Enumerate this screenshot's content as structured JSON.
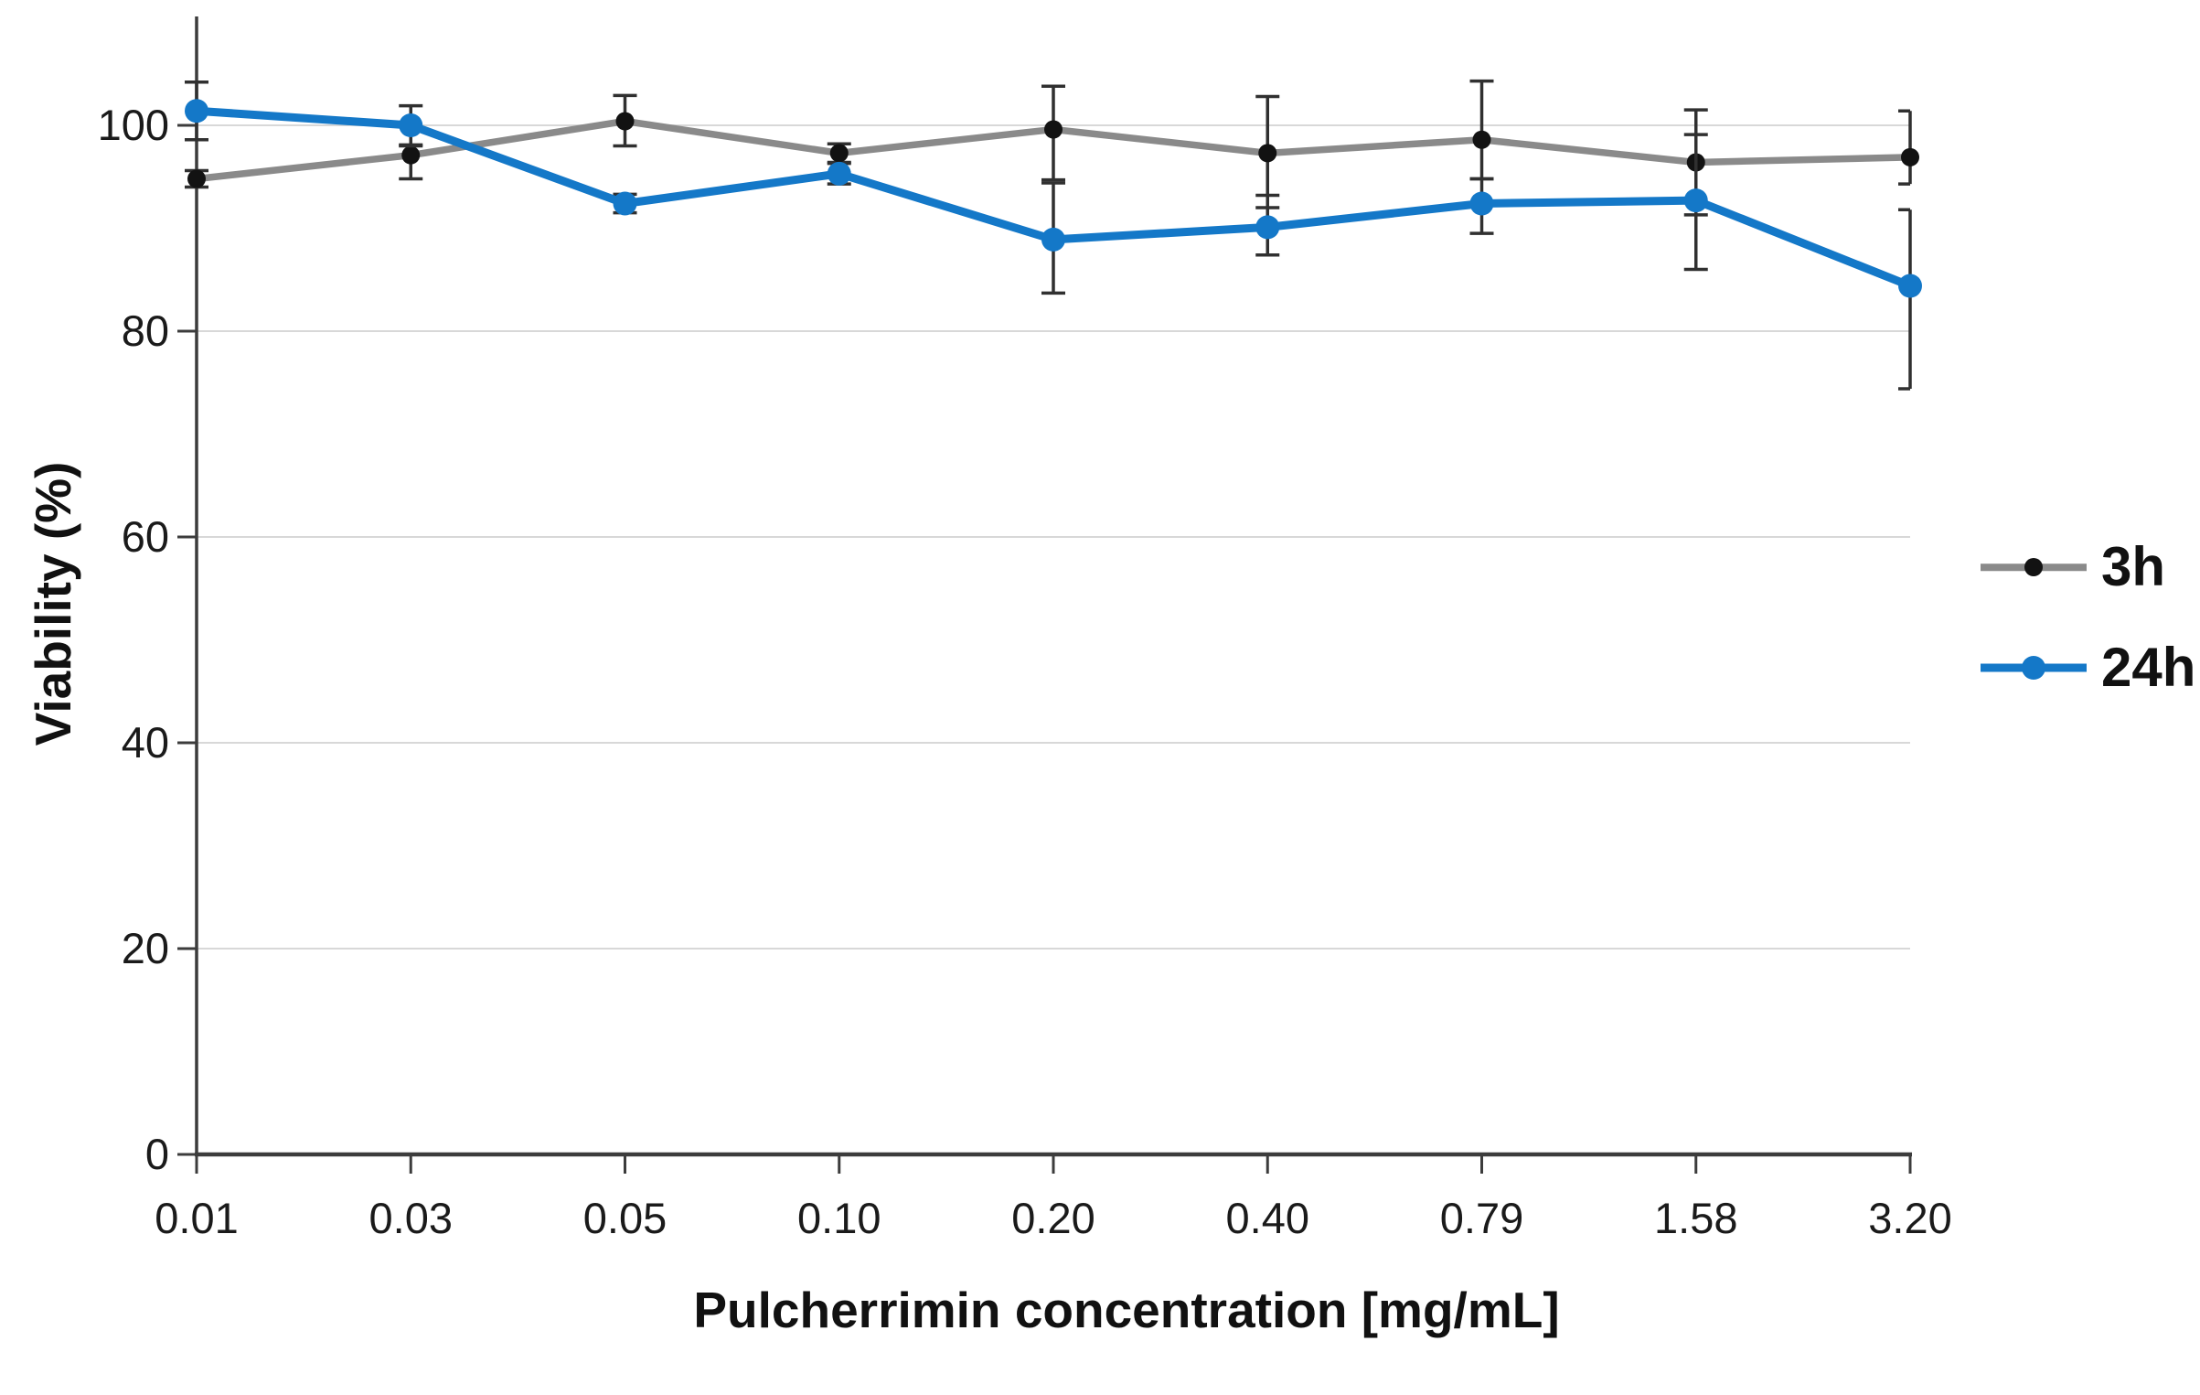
{
  "chart_data": {
    "type": "line",
    "title": "",
    "xlabel": "Pulcherrimin concentration [mg/mL]",
    "ylabel": "Viability (%)",
    "categories": [
      "0.01",
      "0.03",
      "0.05",
      "0.10",
      "0.20",
      "0.40",
      "0.79",
      "1.58",
      "3.20"
    ],
    "y_ticks": [
      0,
      20,
      40,
      60,
      80,
      100
    ],
    "ylim": [
      0,
      110
    ],
    "grid": "horizontal",
    "legend_position": "right",
    "colors": {
      "gridline": "#D8D8D8",
      "axis": "#3C3C3C",
      "tick_label": "#1A1A1A",
      "error_bar": "#303030"
    },
    "series": [
      {
        "name": "3h",
        "line_color": "#8A8A8A",
        "marker_color": "#121212",
        "values": [
          94.8,
          97.1,
          100.4,
          97.3,
          99.6,
          97.3,
          98.6,
          96.4,
          96.9
        ],
        "err_up": [
          0.8,
          1.0,
          2.5,
          0.9,
          4.2,
          5.5,
          5.7,
          5.1,
          4.5
        ],
        "err_down": [
          0.8,
          2.3,
          2.4,
          0.9,
          4.9,
          5.3,
          3.8,
          5.1,
          2.6
        ]
      },
      {
        "name": "24h",
        "line_color": "#1478C8",
        "marker_color": "#1478C8",
        "values": [
          101.4,
          100.0,
          92.4,
          95.3,
          88.9,
          90.1,
          92.4,
          92.7,
          84.4
        ],
        "err_up": [
          2.8,
          1.9,
          0.9,
          1.0,
          5.5,
          3.1,
          2.4,
          6.4,
          7.4
        ],
        "err_down": [
          2.8,
          2.0,
          0.9,
          1.0,
          5.2,
          2.7,
          2.9,
          6.7,
          10.0
        ]
      }
    ]
  }
}
